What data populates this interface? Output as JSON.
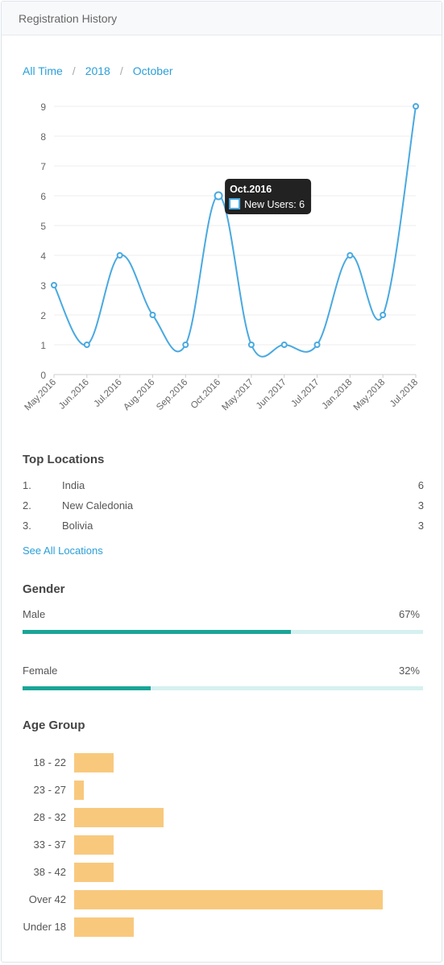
{
  "header": {
    "title": "Registration History"
  },
  "breadcrumb": [
    "All Time",
    "2018",
    "October"
  ],
  "chart_data": {
    "type": "line",
    "categories": [
      "May.2016",
      "Jun.2016",
      "Jul.2016",
      "Aug.2016",
      "Sep.2016",
      "Oct.2016",
      "May.2017",
      "Jun.2017",
      "Jul.2017",
      "Jan.2018",
      "May.2018",
      "Jul.2018"
    ],
    "series": [
      {
        "name": "New Users",
        "values": [
          3,
          1,
          4,
          2,
          1,
          6,
          1,
          1,
          1,
          4,
          2,
          9
        ]
      }
    ],
    "ylim": [
      0,
      9
    ],
    "yticks": [
      0,
      1,
      2,
      3,
      4,
      5,
      6,
      7,
      8,
      9
    ],
    "grid": true,
    "tooltip": {
      "title": "Oct.2016",
      "label": "New Users: 6",
      "index": 5
    }
  },
  "locations": {
    "title": "Top Locations",
    "items": [
      {
        "rank": "1.",
        "name": "India",
        "count": "6"
      },
      {
        "rank": "2.",
        "name": "New Caledonia",
        "count": "3"
      },
      {
        "rank": "3.",
        "name": "Bolivia",
        "count": "3"
      }
    ],
    "see_all": "See All Locations"
  },
  "gender": {
    "title": "Gender",
    "items": [
      {
        "label": "Male",
        "value_text": "67%",
        "value": 67
      },
      {
        "label": "Female",
        "value_text": "32%",
        "value": 32
      }
    ]
  },
  "age": {
    "title": "Age Group",
    "items": [
      {
        "label": "18 - 22",
        "value": 2
      },
      {
        "label": "23 - 27",
        "value": 0.5
      },
      {
        "label": "28 - 32",
        "value": 4.5
      },
      {
        "label": "33 - 37",
        "value": 2
      },
      {
        "label": "38 - 42",
        "value": 2
      },
      {
        "label": "Over 42",
        "value": 15.5
      },
      {
        "label": "Under 18",
        "value": 3
      }
    ]
  },
  "colors": {
    "line": "#49a9e0",
    "accent": "#2a9fd8",
    "gender_fill": "#1aa597",
    "gender_track": "#d6f0f0",
    "age_bar": "#f8c97d",
    "tooltip_bg": "#222222"
  }
}
